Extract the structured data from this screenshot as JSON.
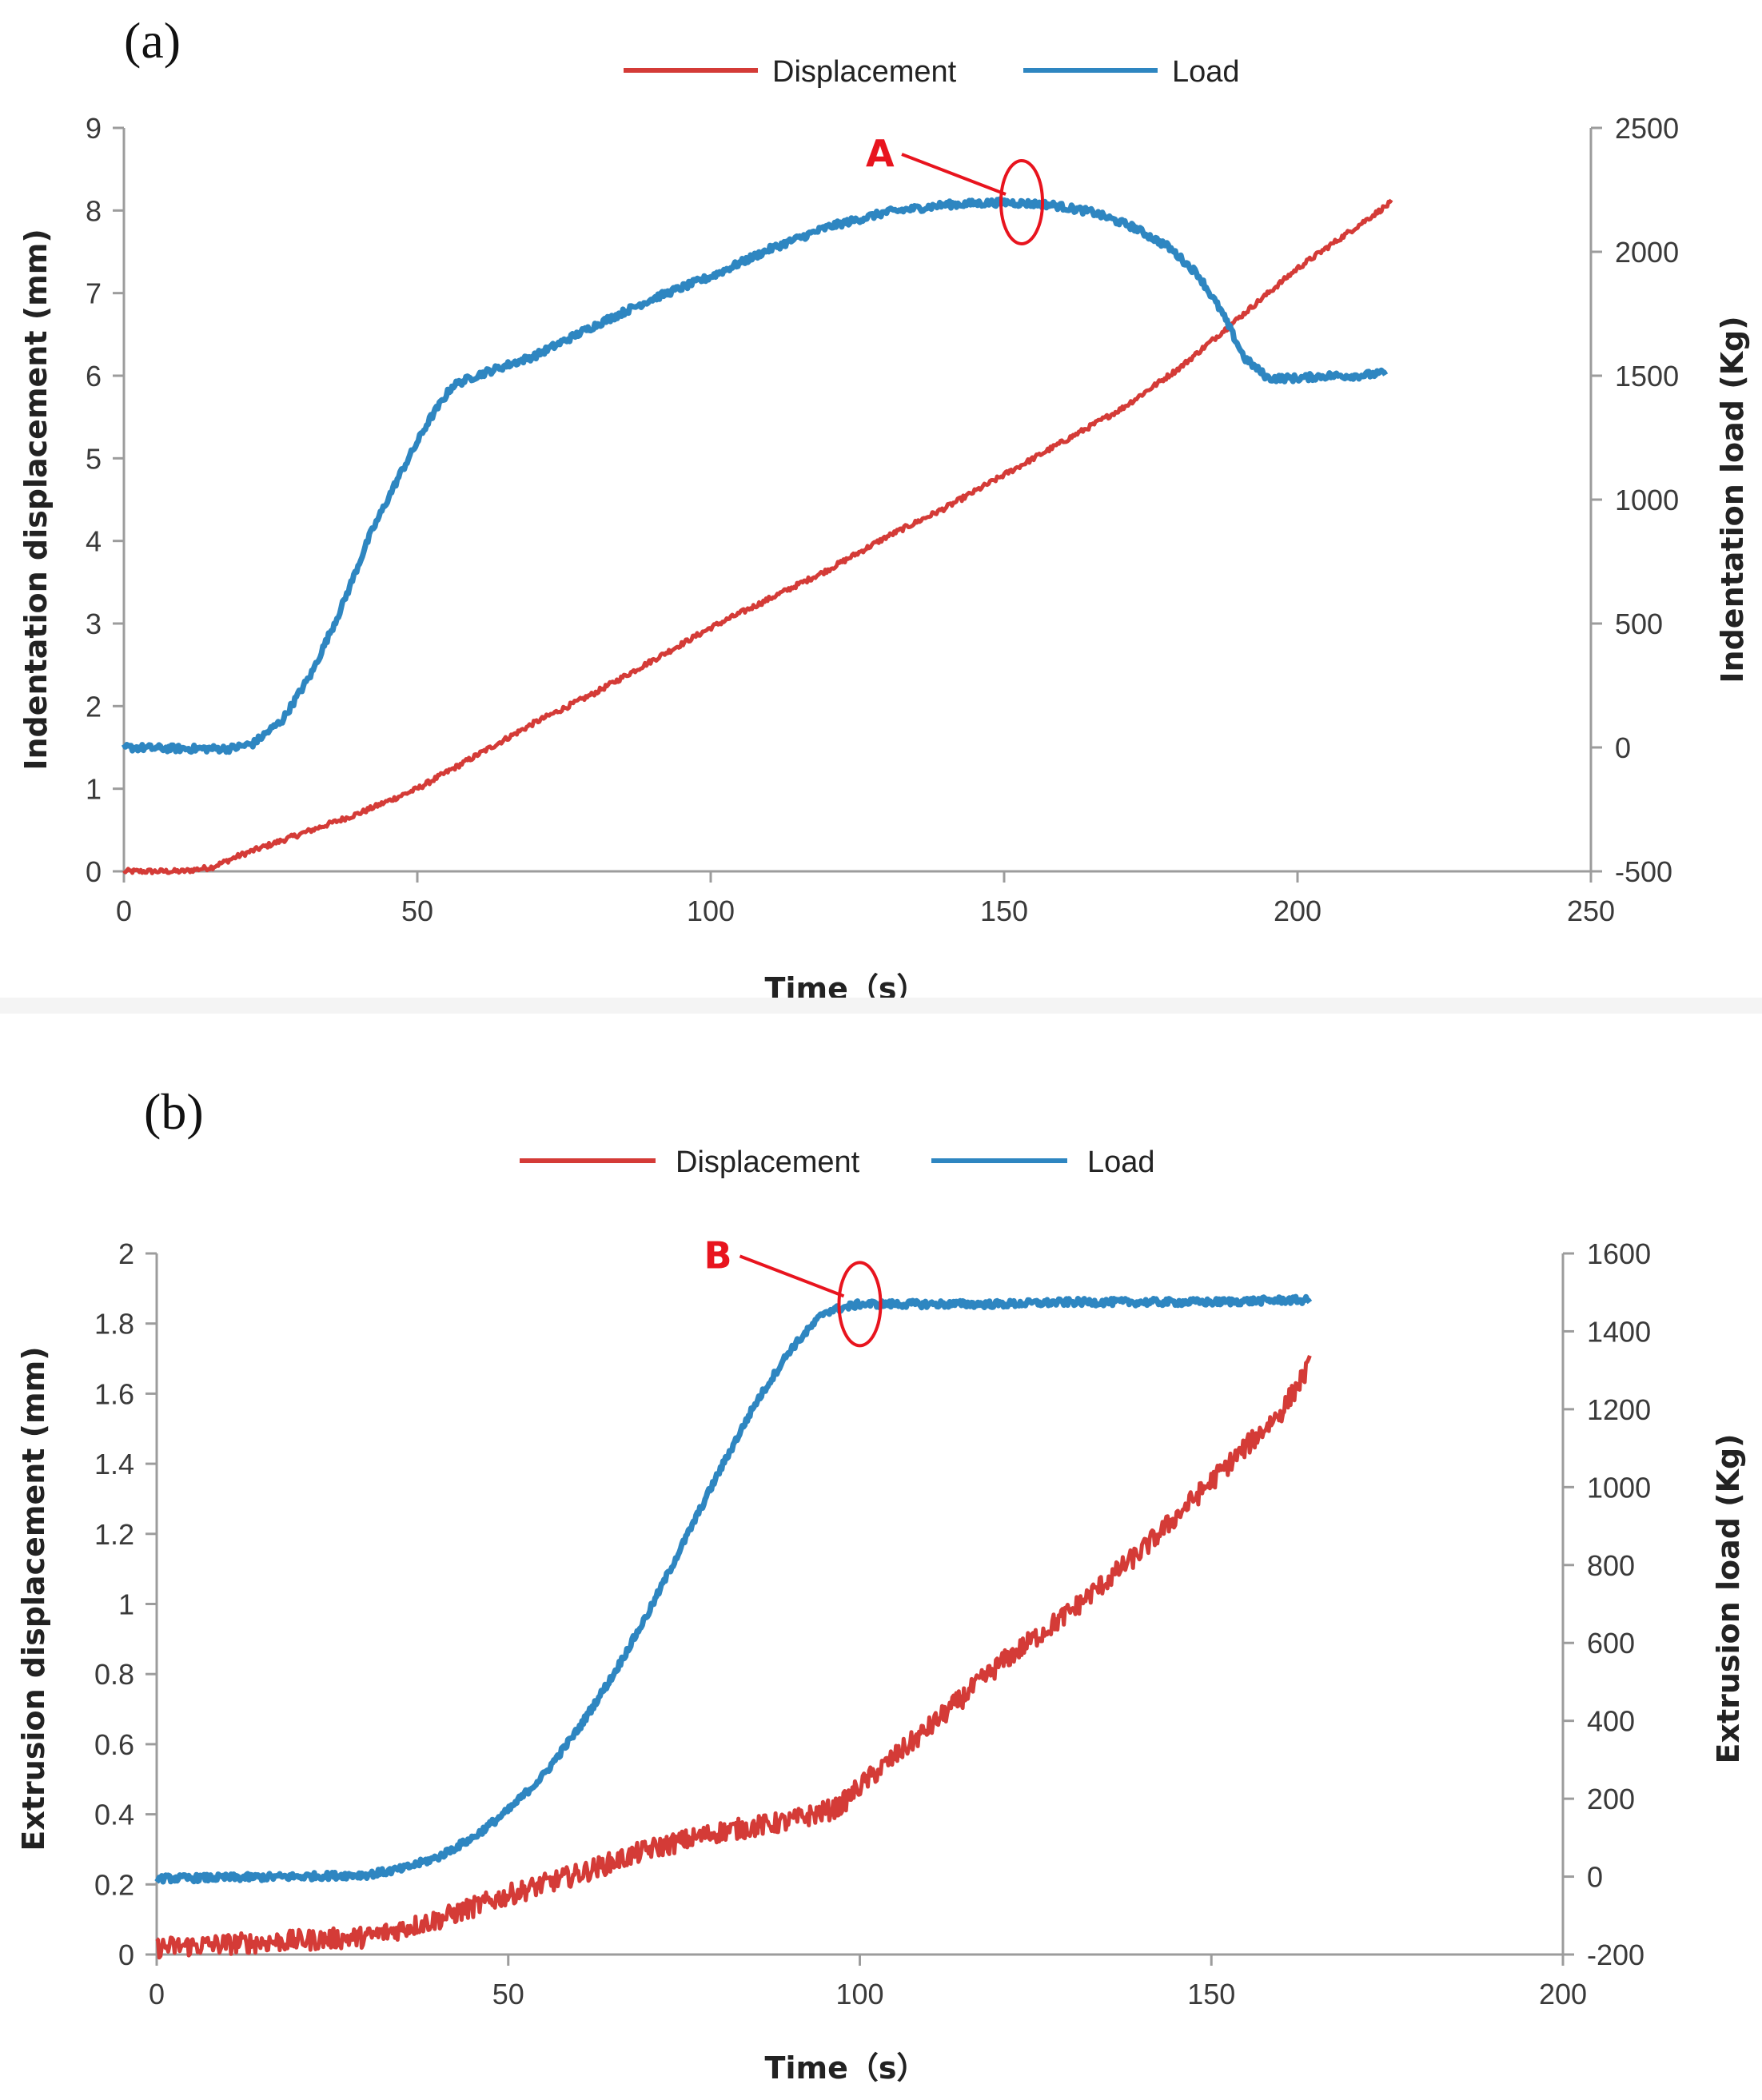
{
  "chart_data": [
    {
      "panel": "(a)",
      "type": "line",
      "legend": {
        "position": "top-center",
        "entries": [
          "Displacement",
          "Load"
        ]
      },
      "xlabel": "Time（s）",
      "ylabel": "Indentation displacement (mm)",
      "y2label": "Indentation load (Kg)",
      "xlim": [
        0,
        250
      ],
      "ylim": [
        0,
        9
      ],
      "y2lim": [
        -500,
        2500
      ],
      "xticks": [
        "0",
        "50",
        "100",
        "150",
        "200",
        "250"
      ],
      "yticks": [
        "0",
        "1",
        "2",
        "3",
        "4",
        "5",
        "6",
        "7",
        "8",
        "9"
      ],
      "y2ticks": [
        "-500",
        "0",
        "500",
        "1000",
        "1500",
        "2000",
        "2500"
      ],
      "series": [
        {
          "name": "Displacement",
          "axis": "left",
          "color": "#d43b37",
          "x": [
            0,
            10,
            15,
            20,
            30,
            40,
            50,
            60,
            70,
            80,
            90,
            100,
            110,
            120,
            130,
            140,
            150,
            160,
            170,
            180,
            190,
            200,
            210,
            216
          ],
          "y": [
            0,
            0,
            0.05,
            0.2,
            0.45,
            0.7,
            1.0,
            1.4,
            1.8,
            2.15,
            2.55,
            2.95,
            3.3,
            3.65,
            4.05,
            4.4,
            4.8,
            5.2,
            5.6,
            6.1,
            6.7,
            7.3,
            7.8,
            8.1
          ],
          "noise": 0.03
        },
        {
          "name": "Load",
          "axis": "right",
          "color": "#2e86c1",
          "x": [
            0,
            10,
            18,
            22,
            27,
            32,
            37,
            42,
            47,
            52,
            56,
            60,
            70,
            80,
            90,
            100,
            110,
            120,
            130,
            140,
            150,
            158,
            165,
            172,
            178,
            183,
            187,
            191,
            195,
            200,
            205,
            210,
            215
          ],
          "y": [
            0,
            -5,
            -5,
            15,
            110,
            300,
            560,
            860,
            1100,
            1320,
            1460,
            1500,
            1580,
            1700,
            1810,
            1900,
            2010,
            2100,
            2160,
            2190,
            2200,
            2190,
            2160,
            2100,
            2020,
            1910,
            1760,
            1570,
            1490,
            1490,
            1500,
            1500,
            1510
          ],
          "noise": 14
        }
      ],
      "annotations": [
        {
          "label": "A",
          "x": 153,
          "y2": 2200
        }
      ]
    },
    {
      "panel": "(b)",
      "type": "line",
      "legend": {
        "position": "top-center",
        "entries": [
          "Displacement",
          "Load"
        ]
      },
      "xlabel": "Time（s）",
      "ylabel": "Extrusion displacement (mm)",
      "y2label": "Extrusion load (Kg)",
      "xlim": [
        0,
        200
      ],
      "ylim": [
        0,
        2
      ],
      "y2lim": [
        -200,
        1600
      ],
      "xticks": [
        "0",
        "50",
        "100",
        "150",
        "200"
      ],
      "yticks": [
        "0",
        "0.2",
        "0.4",
        "0.6",
        "0.8",
        "1",
        "1.2",
        "1.4",
        "1.6",
        "1.8",
        "2"
      ],
      "y2ticks": [
        "-200",
        "0",
        "200",
        "400",
        "600",
        "800",
        "1000",
        "1200",
        "1400",
        "1600"
      ],
      "series": [
        {
          "name": "Displacement",
          "axis": "left",
          "color": "#d43b37",
          "x": [
            0,
            20,
            30,
            40,
            50,
            60,
            70,
            80,
            90,
            97,
            100,
            110,
            120,
            130,
            140,
            150,
            160,
            164
          ],
          "y": [
            0.02,
            0.04,
            0.05,
            0.1,
            0.17,
            0.23,
            0.3,
            0.35,
            0.38,
            0.42,
            0.48,
            0.65,
            0.83,
            0.98,
            1.15,
            1.35,
            1.55,
            1.68
          ],
          "noise": 0.03
        },
        {
          "name": "Load",
          "axis": "right",
          "color": "#2e86c1",
          "x": [
            0,
            20,
            30,
            35,
            40,
            45,
            50,
            55,
            60,
            65,
            70,
            75,
            80,
            85,
            90,
            95,
            100,
            110,
            120,
            130,
            140,
            150,
            160,
            164
          ],
          "y": [
            -5,
            0,
            5,
            20,
            50,
            100,
            170,
            260,
            380,
            520,
            680,
            860,
            1040,
            1210,
            1350,
            1450,
            1470,
            1470,
            1470,
            1475,
            1475,
            1475,
            1480,
            1480
          ],
          "noise": 9
        }
      ],
      "annotations": [
        {
          "label": "B",
          "x": 100,
          "y2": 1470
        }
      ]
    }
  ]
}
